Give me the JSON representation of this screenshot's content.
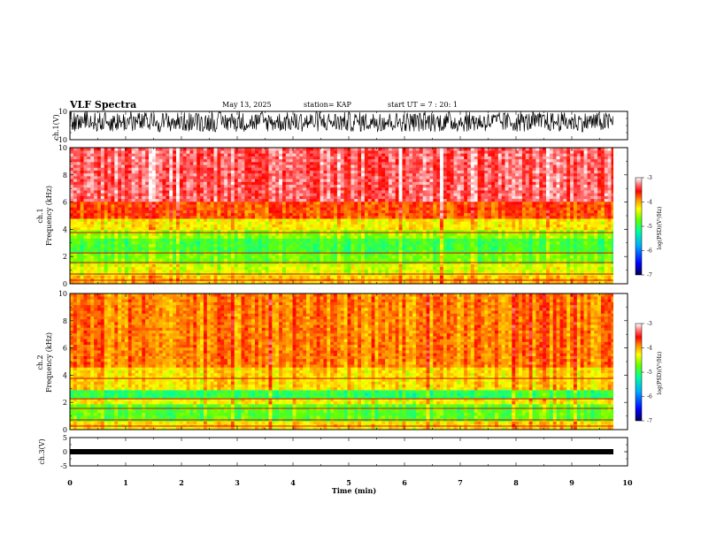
{
  "header": {
    "title": "VLF Spectra",
    "date": "May 13, 2025",
    "station": "station= KAP",
    "start": "start  UT =   7 : 20: 1"
  },
  "chart_data": [
    {
      "type": "line",
      "panel": "waveform-ch1",
      "ylabel": "ch.1(V)",
      "ylim": [
        -10,
        10
      ],
      "yticks": [
        "10",
        "-10"
      ],
      "xlim": [
        0,
        10
      ],
      "data_end_min": 9.83,
      "description_values": {
        "approx_amplitude_range_V": [
          -5,
          10
        ]
      }
    },
    {
      "type": "heatmap",
      "panel": "spectrogram-ch1",
      "ylabel": "ch.1\nFrequency (kHz)",
      "ylabel_line1": "ch.1",
      "ylabel_line2": "Frequency (kHz)",
      "ylim": [
        0,
        10
      ],
      "yticks": [
        "0",
        "2",
        "4",
        "6",
        "8",
        "10"
      ],
      "xlim": [
        0,
        10
      ],
      "data_end_min": 9.83,
      "levels_by_freq_khz": [
        {
          "f": [
            0,
            0.7
          ],
          "level": -4.1
        },
        {
          "f": [
            0.7,
            1.5
          ],
          "level": -4.4
        },
        {
          "f": [
            1.5,
            2.3
          ],
          "level": -4.7
        },
        {
          "f": [
            2.3,
            3.3
          ],
          "level": -4.9
        },
        {
          "f": [
            3.3,
            4.0
          ],
          "level": -4.6
        },
        {
          "f": [
            4.0,
            4.8
          ],
          "level": -4.25
        },
        {
          "f": [
            4.8,
            6.0
          ],
          "level": -3.75
        },
        {
          "f": [
            6.0,
            10.0
          ],
          "level": -3.35
        }
      ],
      "colorbar": {
        "label": "log(PSD)(V²/Hz)",
        "range": [
          -7,
          -3
        ],
        "ticks": [
          "-3",
          "-4",
          "-5",
          "-6",
          "-7"
        ]
      }
    },
    {
      "type": "heatmap",
      "panel": "spectrogram-ch2",
      "ylabel_line1": "ch.2",
      "ylabel_line2": "Frequency (kHz)",
      "ylim": [
        0,
        10
      ],
      "yticks": [
        "0",
        "2",
        "4",
        "6",
        "8",
        "10"
      ],
      "xlim": [
        0,
        10
      ],
      "data_end_min": 9.83,
      "levels_by_freq_khz": [
        {
          "f": [
            0,
            0.6
          ],
          "level": -4.2
        },
        {
          "f": [
            0.6,
            1.8
          ],
          "level": -4.8
        },
        {
          "f": [
            1.8,
            2.2
          ],
          "level": -4.3
        },
        {
          "f": [
            2.2,
            3.0
          ],
          "level": -5.0
        },
        {
          "f": [
            3.0,
            4.5
          ],
          "level": -4.2
        },
        {
          "f": [
            4.5,
            10.0
          ],
          "level": -3.9
        }
      ],
      "colorbar": {
        "label": "log(PSD)(V²/Hz)",
        "range": [
          -7,
          -3
        ],
        "ticks": [
          "-3",
          "-4",
          "-5",
          "-6",
          "-7"
        ]
      }
    },
    {
      "type": "line",
      "panel": "waveform-ch3",
      "ylabel": "ch.3(V)",
      "ylim": [
        -5,
        5
      ],
      "yticks": [
        "5",
        "0",
        "-5"
      ],
      "xlim": [
        0,
        10
      ],
      "data_end_min": 9.83,
      "description_values": {
        "approx_amplitude_range_V": [
          -0.5,
          0.5
        ]
      }
    }
  ],
  "xaxis": {
    "label": "Time (min)",
    "ticks": [
      "0",
      "1",
      "2",
      "3",
      "4",
      "5",
      "6",
      "7",
      "8",
      "9",
      "10"
    ]
  }
}
